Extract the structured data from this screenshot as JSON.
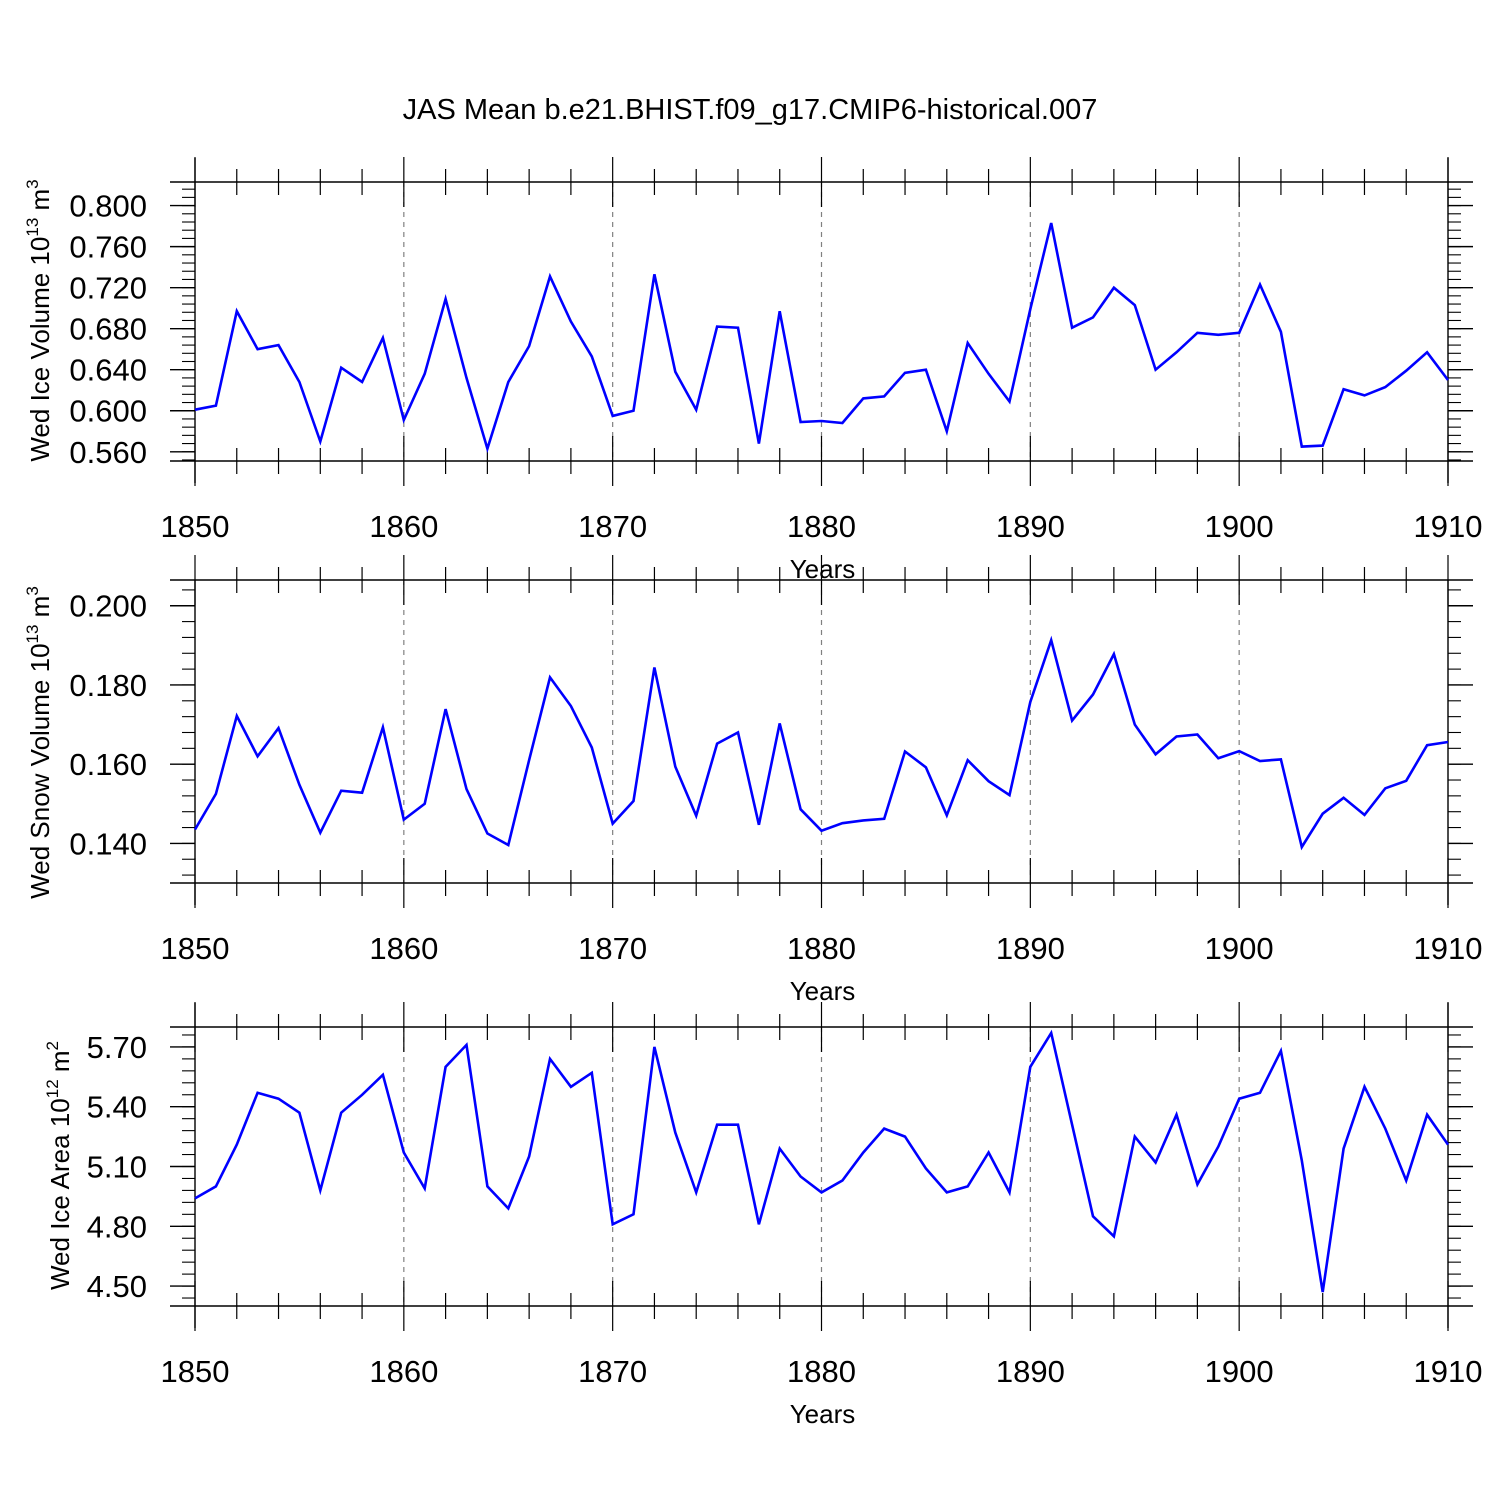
{
  "title": "JAS Mean b.e21.BHIST.f09_g17.CMIP6-historical.007",
  "colors": {
    "line": "#0000ff",
    "axis": "#000000",
    "grid": "#808080"
  },
  "chart_data": [
    {
      "type": "line",
      "ylabel": "Wed Ice Volume 10",
      "ylabel_exp": "13",
      "ylabel_unit": " m",
      "ylabel_unit_exp": "3",
      "xlabel": "Years",
      "xlim": [
        1850,
        1910
      ],
      "ylim": [
        0.551,
        0.823
      ],
      "xticks": [
        "1850",
        "1860",
        "1870",
        "1880",
        "1890",
        "1900",
        "1910"
      ],
      "yticks": [
        "0.560",
        "0.600",
        "0.640",
        "0.680",
        "0.720",
        "0.760",
        "0.800"
      ],
      "ytick_values": [
        0.56,
        0.6,
        0.64,
        0.68,
        0.72,
        0.76,
        0.8
      ],
      "yminor_step": 0.008,
      "x": [
        1850,
        1851,
        1852,
        1853,
        1854,
        1855,
        1856,
        1857,
        1858,
        1859,
        1860,
        1861,
        1862,
        1863,
        1864,
        1865,
        1866,
        1867,
        1868,
        1869,
        1870,
        1871,
        1872,
        1873,
        1874,
        1875,
        1876,
        1877,
        1878,
        1879,
        1880,
        1881,
        1882,
        1883,
        1884,
        1885,
        1886,
        1887,
        1888,
        1889,
        1890,
        1891,
        1892,
        1893,
        1894,
        1895,
        1896,
        1897,
        1898,
        1899,
        1900,
        1901,
        1902,
        1903,
        1904,
        1905,
        1906,
        1907,
        1908,
        1909,
        1910
      ],
      "values": [
        0.601,
        0.605,
        0.697,
        0.66,
        0.664,
        0.628,
        0.57,
        0.642,
        0.628,
        0.671,
        0.591,
        0.636,
        0.709,
        0.632,
        0.563,
        0.628,
        0.663,
        0.731,
        0.687,
        0.653,
        0.595,
        0.6,
        0.733,
        0.638,
        0.601,
        0.682,
        0.681,
        0.568,
        0.697,
        0.589,
        0.59,
        0.588,
        0.612,
        0.614,
        0.637,
        0.64,
        0.58,
        0.666,
        0.636,
        0.609,
        0.699,
        0.783,
        0.681,
        0.691,
        0.72,
        0.703,
        0.64,
        0.657,
        0.676,
        0.674,
        0.676,
        0.723,
        0.677,
        0.565,
        0.566,
        0.621,
        0.615,
        0.623,
        0.639,
        0.657,
        0.63
      ]
    },
    {
      "type": "line",
      "ylabel": "Wed Snow Volume 10",
      "ylabel_exp": "13",
      "ylabel_unit": " m",
      "ylabel_unit_exp": "3",
      "xlabel": "Years",
      "xlim": [
        1850,
        1910
      ],
      "ylim": [
        0.13,
        0.2065
      ],
      "xticks": [
        "1850",
        "1860",
        "1870",
        "1880",
        "1890",
        "1900",
        "1910"
      ],
      "yticks": [
        "0.140",
        "0.160",
        "0.180",
        "0.200"
      ],
      "ytick_values": [
        0.14,
        0.16,
        0.18,
        0.2
      ],
      "yminor_step": 0.004,
      "x": [
        1850,
        1851,
        1852,
        1853,
        1854,
        1855,
        1856,
        1857,
        1858,
        1859,
        1860,
        1861,
        1862,
        1863,
        1864,
        1865,
        1866,
        1867,
        1868,
        1869,
        1870,
        1871,
        1872,
        1873,
        1874,
        1875,
        1876,
        1877,
        1878,
        1879,
        1880,
        1881,
        1882,
        1883,
        1884,
        1885,
        1886,
        1887,
        1888,
        1889,
        1890,
        1891,
        1892,
        1893,
        1894,
        1895,
        1896,
        1897,
        1898,
        1899,
        1900,
        1901,
        1902,
        1903,
        1904,
        1905,
        1906,
        1907,
        1908,
        1909,
        1910
      ],
      "values": [
        0.1435,
        0.1525,
        0.1722,
        0.162,
        0.1691,
        0.1548,
        0.1427,
        0.1533,
        0.1528,
        0.1693,
        0.146,
        0.15,
        0.1739,
        0.1537,
        0.1425,
        0.1396,
        0.161,
        0.1819,
        0.1747,
        0.1642,
        0.145,
        0.1507,
        0.1844,
        0.1594,
        0.147,
        0.1652,
        0.168,
        0.1447,
        0.1703,
        0.1486,
        0.1432,
        0.1451,
        0.1458,
        0.1462,
        0.1632,
        0.1592,
        0.1471,
        0.161,
        0.1557,
        0.1522,
        0.1757,
        0.1913,
        0.171,
        0.1776,
        0.1878,
        0.17,
        0.1625,
        0.167,
        0.1675,
        0.1615,
        0.1633,
        0.1608,
        0.1612,
        0.1391,
        0.1475,
        0.1515,
        0.1472,
        0.1539,
        0.1558,
        0.1648,
        0.1656
      ]
    },
    {
      "type": "line",
      "ylabel": "Wed Ice Area 10",
      "ylabel_exp": "12",
      "ylabel_unit": " m",
      "ylabel_unit_exp": "2",
      "xlabel": "Years",
      "xlim": [
        1850,
        1910
      ],
      "ylim": [
        4.4,
        5.8
      ],
      "xticks": [
        "1850",
        "1860",
        "1870",
        "1880",
        "1890",
        "1900",
        "1910"
      ],
      "yticks": [
        "4.50",
        "4.80",
        "5.10",
        "5.40",
        "5.70"
      ],
      "ytick_values": [
        4.5,
        4.8,
        5.1,
        5.4,
        5.7
      ],
      "yminor_step": 0.06,
      "x": [
        1850,
        1851,
        1852,
        1853,
        1854,
        1855,
        1856,
        1857,
        1858,
        1859,
        1860,
        1861,
        1862,
        1863,
        1864,
        1865,
        1866,
        1867,
        1868,
        1869,
        1870,
        1871,
        1872,
        1873,
        1874,
        1875,
        1876,
        1877,
        1878,
        1879,
        1880,
        1881,
        1882,
        1883,
        1884,
        1885,
        1886,
        1887,
        1888,
        1889,
        1890,
        1891,
        1892,
        1893,
        1894,
        1895,
        1896,
        1897,
        1898,
        1899,
        1900,
        1901,
        1902,
        1903,
        1904,
        1905,
        1906,
        1907,
        1908,
        1909,
        1910
      ],
      "values": [
        4.94,
        5.0,
        5.21,
        5.47,
        5.44,
        5.37,
        4.98,
        5.37,
        5.46,
        5.56,
        5.17,
        4.99,
        5.6,
        5.71,
        5.0,
        4.89,
        5.15,
        5.64,
        5.5,
        5.57,
        4.81,
        4.86,
        5.7,
        5.27,
        4.97,
        5.31,
        5.31,
        4.81,
        5.19,
        5.05,
        4.97,
        5.03,
        5.17,
        5.29,
        5.25,
        5.09,
        4.97,
        5.0,
        5.17,
        4.97,
        5.6,
        5.77,
        5.31,
        4.85,
        4.75,
        5.25,
        5.12,
        5.36,
        5.01,
        5.2,
        5.44,
        5.47,
        5.68,
        5.13,
        4.47,
        5.19,
        5.5,
        5.29,
        5.03,
        5.36,
        5.21
      ]
    }
  ]
}
